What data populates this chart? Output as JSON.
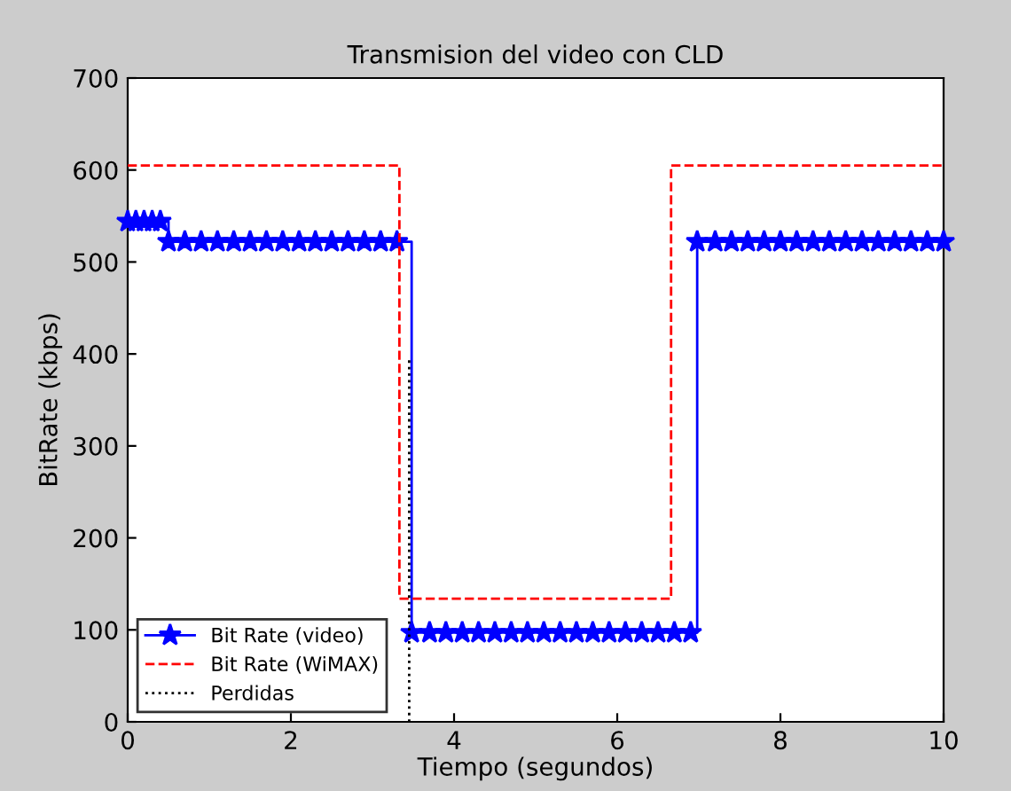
{
  "chart_data": {
    "type": "step",
    "title": "Transmision del video con CLD",
    "xlabel": "Tiempo (segundos)",
    "ylabel": "BitRate (kbps)",
    "xlim": [
      0,
      10
    ],
    "ylim": [
      0,
      700
    ],
    "xticks": [
      0,
      2,
      4,
      6,
      8,
      10
    ],
    "yticks": [
      0,
      100,
      200,
      300,
      400,
      500,
      600,
      700
    ],
    "legend": "bottom left",
    "grid": false,
    "series": [
      {
        "name": "Bit Rate (video)",
        "color": "#0000ff",
        "marker": "star",
        "line_style": "solid",
        "x": [
          0,
          0.1,
          0.2,
          0.3,
          0.4,
          0.5,
          0.7,
          0.9,
          1.1,
          1.3,
          1.5,
          1.7,
          1.9,
          2.1,
          2.3,
          2.5,
          2.7,
          2.9,
          3.1,
          3.3,
          3.48,
          3.7,
          3.9,
          4.1,
          4.3,
          4.5,
          4.7,
          4.9,
          5.1,
          5.3,
          5.5,
          5.7,
          5.9,
          6.1,
          6.3,
          6.5,
          6.7,
          6.9,
          6.98,
          7.2,
          7.4,
          7.6,
          7.8,
          8.0,
          8.2,
          8.4,
          8.6,
          8.8,
          9.0,
          9.2,
          9.4,
          9.6,
          9.8,
          10.0
        ],
        "values": [
          544,
          544,
          544,
          544,
          544,
          522,
          522,
          522,
          522,
          522,
          522,
          522,
          522,
          522,
          522,
          522,
          522,
          522,
          522,
          522,
          97,
          97,
          97,
          97,
          97,
          97,
          97,
          97,
          97,
          97,
          97,
          97,
          97,
          97,
          97,
          97,
          97,
          97,
          522,
          522,
          522,
          522,
          522,
          522,
          522,
          522,
          522,
          522,
          522,
          522,
          522,
          522,
          522,
          522
        ]
      },
      {
        "name": "Bit Rate (WiMAX)",
        "color": "#ff0000",
        "marker": "none",
        "line_style": "dashed",
        "x": [
          0,
          3.33,
          6.66,
          10
        ],
        "values": [
          605,
          134,
          605,
          605
        ]
      },
      {
        "name": "Perdidas",
        "color": "#000000",
        "marker": "none",
        "line_style": "dotted",
        "x": [
          3.45,
          3.45
        ],
        "values": [
          0,
          395
        ]
      }
    ]
  }
}
